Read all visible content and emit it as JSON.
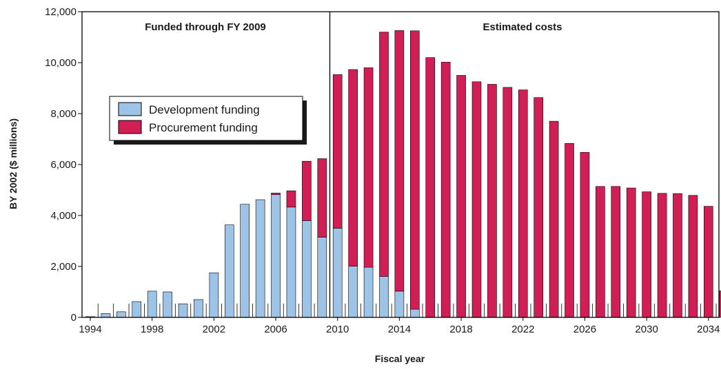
{
  "chart_data": {
    "type": "bar",
    "stacked": true,
    "xlabel": "Fiscal year",
    "ylabel": "BY 2002 ($ millions)",
    "ylim": [
      0,
      12000
    ],
    "yticks": [
      0,
      2000,
      4000,
      6000,
      8000,
      10000,
      12000
    ],
    "ytick_labels": [
      "0",
      "2,000",
      "4,000",
      "6,000",
      "8,000",
      "10,000",
      "12,000"
    ],
    "xtick_labels": [
      "1994",
      "1998",
      "2002",
      "2006",
      "2010",
      "2014",
      "2018",
      "2022",
      "2026",
      "2030",
      "2034"
    ],
    "categories": [
      1994,
      1995,
      1996,
      1997,
      1998,
      1999,
      2000,
      2001,
      2002,
      2003,
      2004,
      2005,
      2006,
      2007,
      2008,
      2009,
      2010,
      2011,
      2012,
      2013,
      2014,
      2015,
      2016,
      2017,
      2018,
      2019,
      2020,
      2021,
      2022,
      2023,
      2024,
      2025,
      2026,
      2027,
      2028,
      2029,
      2030,
      2031,
      2032,
      2033,
      2034,
      2035
    ],
    "series": [
      {
        "name": "Development funding",
        "color": "#9dc3e6",
        "values": [
          30,
          150,
          220,
          620,
          1030,
          1000,
          530,
          700,
          1750,
          3630,
          4440,
          4620,
          4820,
          4330,
          3800,
          3150,
          3500,
          2010,
          1970,
          1610,
          1030,
          320,
          0,
          0,
          0,
          0,
          0,
          0,
          0,
          0,
          0,
          0,
          0,
          0,
          0,
          0,
          0,
          0,
          0,
          0,
          0,
          0
        ]
      },
      {
        "name": "Procurement funding",
        "color": "#d11f55",
        "values": [
          0,
          0,
          0,
          0,
          0,
          0,
          0,
          0,
          0,
          0,
          0,
          0,
          60,
          640,
          2330,
          3080,
          6030,
          7720,
          7830,
          9590,
          10230,
          10930,
          10200,
          10020,
          9500,
          9250,
          9150,
          9030,
          8930,
          8630,
          7700,
          6830,
          6480,
          5140,
          5140,
          5080,
          4930,
          4870,
          4860,
          4790,
          4360,
          1040
        ]
      }
    ],
    "annotations": [
      {
        "text": "Funded through FY 2009",
        "region": "left"
      },
      {
        "text": "Estimated costs",
        "region": "right"
      }
    ],
    "divider_after": 2009,
    "legend_position": "upper-left",
    "grid": false
  }
}
